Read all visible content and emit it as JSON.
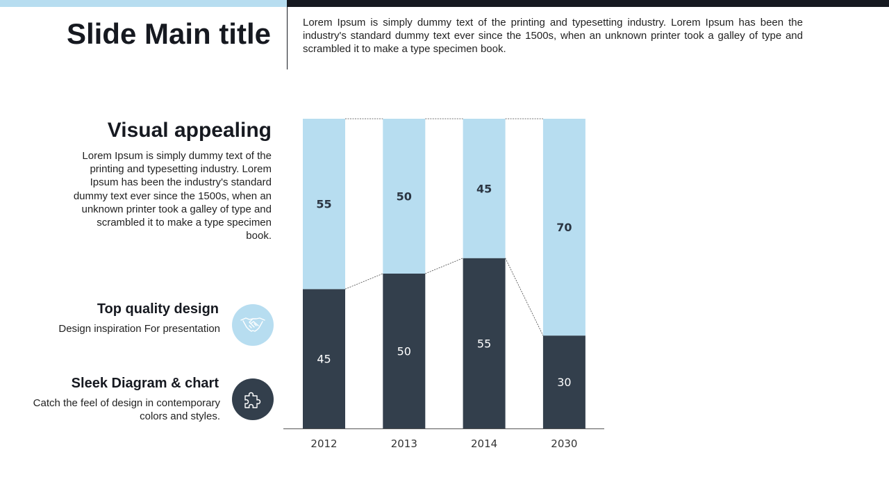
{
  "header": {
    "title": "Slide Main title",
    "text": "Lorem Ipsum is simply dummy text of the printing and typesetting industry. Lorem Ipsum has been the industry's standard dummy text ever since the 1500s, when an unknown printer took a galley of type and scrambled it to make a type specimen book."
  },
  "section": {
    "title": "Visual appealing",
    "text": "Lorem Ipsum is simply dummy text of the printing and typesetting industry. Lorem Ipsum has been the industry's standard dummy text ever since the 1500s, when an unknown printer took a galley of type and scrambled it to make a type specimen book."
  },
  "features": [
    {
      "title": "Top quality design",
      "desc": "Design inspiration For presentation",
      "icon": "handshake-icon"
    },
    {
      "title": "Sleek Diagram & chart",
      "desc": "Catch the feel of design in contemporary colors and styles.",
      "icon": "puzzle-icon"
    }
  ],
  "colors": {
    "light_blue": "#b7ddf0",
    "dark_slate": "#333f4c",
    "top_bar_dark": "#161920"
  },
  "chart_data": {
    "type": "bar",
    "stacked": true,
    "categories": [
      "2012",
      "2013",
      "2014",
      "2030"
    ],
    "series": [
      {
        "values": [
          45,
          50,
          55,
          30
        ],
        "color": "#333f4c"
      },
      {
        "values": [
          55,
          50,
          45,
          70
        ],
        "color": "#b7ddf0"
      }
    ],
    "ylim": [
      0,
      100
    ],
    "grid": false,
    "legend": "none",
    "connector_lines": true
  }
}
